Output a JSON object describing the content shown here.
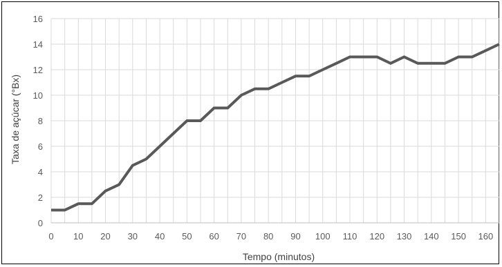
{
  "chart_data": {
    "type": "line",
    "title": "",
    "xlabel": "Tempo (minutos)",
    "ylabel": "Taxa de açúcar (°Bx)",
    "xlim": [
      0,
      165
    ],
    "ylim": [
      0,
      16
    ],
    "x_ticks": [
      0,
      10,
      20,
      30,
      40,
      50,
      60,
      70,
      80,
      90,
      100,
      110,
      120,
      130,
      140,
      150,
      160
    ],
    "y_ticks": [
      0,
      2,
      4,
      6,
      8,
      10,
      12,
      14,
      16
    ],
    "grid": true,
    "legend": "none",
    "line_color": "#595959",
    "series": [
      {
        "x": [
          0,
          5,
          10,
          15,
          20,
          25,
          30,
          35,
          40,
          45,
          50,
          55,
          60,
          65,
          70,
          75,
          80,
          85,
          90,
          95,
          100,
          105,
          110,
          115,
          120,
          125,
          130,
          135,
          140,
          145,
          150,
          155,
          160,
          165
        ],
        "values": [
          1,
          1,
          1.5,
          1.5,
          2.5,
          3,
          4.5,
          5,
          6,
          7,
          8,
          8,
          9,
          9,
          10,
          10.5,
          10.5,
          11,
          11.5,
          11.5,
          12,
          12.5,
          13,
          13,
          13,
          12.5,
          13,
          12.5,
          12.5,
          12.5,
          13,
          13,
          13.5,
          14
        ]
      }
    ]
  }
}
